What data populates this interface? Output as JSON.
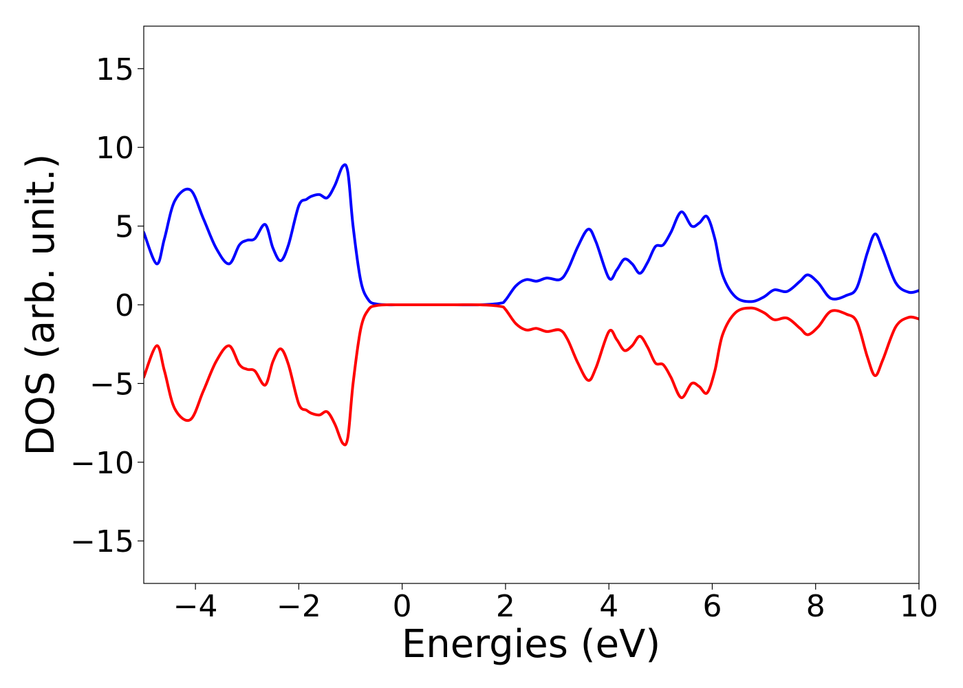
{
  "chart_data": {
    "type": "line",
    "title": "",
    "xlabel": "Energies (eV)",
    "ylabel": "DOS (arb. unit.)",
    "xlim": [
      -5,
      10
    ],
    "ylim": [
      -17.7,
      17.7
    ],
    "grid": false,
    "legend": "none",
    "x_ticks": [
      -4,
      -2,
      0,
      2,
      4,
      6,
      8,
      10
    ],
    "x_tick_labels": [
      "−4",
      "−2",
      "0",
      "2",
      "4",
      "6",
      "8",
      "10"
    ],
    "y_ticks": [
      15,
      10,
      5,
      0,
      -5,
      -10,
      -15
    ],
    "y_tick_labels": [
      "15",
      "10",
      "5",
      "0",
      "−5",
      "−10",
      "−15"
    ],
    "series": [
      {
        "color": "#0000ff",
        "x": [
          -5.0,
          -4.75,
          -4.6,
          -4.4,
          -4.1,
          -3.85,
          -3.6,
          -3.35,
          -3.15,
          -3.0,
          -2.85,
          -2.65,
          -2.5,
          -2.35,
          -2.2,
          -2.0,
          -1.85,
          -1.75,
          -1.6,
          -1.45,
          -1.3,
          -1.15,
          -1.05,
          -0.95,
          -0.8,
          -0.65,
          -0.5,
          -0.3,
          0.0,
          0.5,
          1.0,
          1.5,
          1.9,
          2.0,
          2.2,
          2.4,
          2.6,
          2.8,
          3.05,
          3.2,
          3.4,
          3.6,
          3.75,
          4.0,
          4.15,
          4.3,
          4.45,
          4.6,
          4.75,
          4.9,
          5.05,
          5.2,
          5.4,
          5.6,
          5.75,
          5.9,
          6.05,
          6.2,
          6.45,
          6.75,
          7.0,
          7.2,
          7.45,
          7.7,
          7.85,
          8.05,
          8.3,
          8.6,
          8.8,
          9.0,
          9.15,
          9.3,
          9.55,
          9.8,
          10.0
        ],
        "y": [
          4.6,
          2.6,
          4.2,
          6.6,
          7.3,
          5.5,
          3.6,
          2.6,
          3.8,
          4.1,
          4.2,
          5.1,
          3.6,
          2.8,
          3.8,
          6.3,
          6.7,
          6.9,
          7.0,
          6.8,
          7.6,
          8.8,
          8.4,
          5.0,
          1.5,
          0.3,
          0.05,
          0.0,
          0.0,
          0.0,
          0.0,
          0.0,
          0.1,
          0.3,
          1.2,
          1.6,
          1.5,
          1.7,
          1.6,
          2.2,
          3.7,
          4.8,
          4.0,
          1.7,
          2.2,
          2.9,
          2.6,
          2.0,
          2.7,
          3.7,
          3.8,
          4.6,
          5.9,
          5.0,
          5.2,
          5.6,
          4.2,
          1.9,
          0.5,
          0.2,
          0.5,
          0.95,
          0.85,
          1.5,
          1.9,
          1.4,
          0.4,
          0.6,
          1.1,
          3.3,
          4.5,
          3.5,
          1.4,
          0.8,
          0.9
        ]
      },
      {
        "color": "#ff0000",
        "x": [
          -5.0,
          -4.75,
          -4.6,
          -4.4,
          -4.1,
          -3.85,
          -3.6,
          -3.35,
          -3.15,
          -3.0,
          -2.85,
          -2.65,
          -2.5,
          -2.35,
          -2.2,
          -2.0,
          -1.85,
          -1.75,
          -1.6,
          -1.45,
          -1.3,
          -1.15,
          -1.05,
          -0.95,
          -0.8,
          -0.65,
          -0.5,
          -0.3,
          0.0,
          0.5,
          1.0,
          1.5,
          1.9,
          2.0,
          2.2,
          2.4,
          2.6,
          2.8,
          3.05,
          3.2,
          3.4,
          3.6,
          3.75,
          4.0,
          4.15,
          4.3,
          4.45,
          4.6,
          4.75,
          4.9,
          5.05,
          5.2,
          5.4,
          5.6,
          5.75,
          5.9,
          6.05,
          6.2,
          6.45,
          6.75,
          7.0,
          7.2,
          7.45,
          7.7,
          7.85,
          8.05,
          8.3,
          8.6,
          8.8,
          9.0,
          9.15,
          9.3,
          9.55,
          9.8,
          10.0
        ],
        "y": [
          -4.6,
          -2.6,
          -4.2,
          -6.6,
          -7.3,
          -5.5,
          -3.6,
          -2.6,
          -3.8,
          -4.1,
          -4.2,
          -5.1,
          -3.6,
          -2.8,
          -3.8,
          -6.3,
          -6.7,
          -6.9,
          -7.0,
          -6.8,
          -7.6,
          -8.8,
          -8.4,
          -5.0,
          -1.5,
          -0.3,
          -0.05,
          0.0,
          0.0,
          0.0,
          0.0,
          0.0,
          -0.1,
          -0.3,
          -1.2,
          -1.6,
          -1.5,
          -1.7,
          -1.6,
          -2.2,
          -3.7,
          -4.8,
          -4.0,
          -1.7,
          -2.2,
          -2.9,
          -2.6,
          -2.0,
          -2.7,
          -3.7,
          -3.8,
          -4.6,
          -5.9,
          -5.0,
          -5.2,
          -5.6,
          -4.2,
          -1.9,
          -0.5,
          -0.2,
          -0.5,
          -0.95,
          -0.85,
          -1.5,
          -1.9,
          -1.4,
          -0.4,
          -0.6,
          -1.1,
          -3.3,
          -4.5,
          -3.5,
          -1.4,
          -0.8,
          -0.9
        ]
      }
    ]
  }
}
